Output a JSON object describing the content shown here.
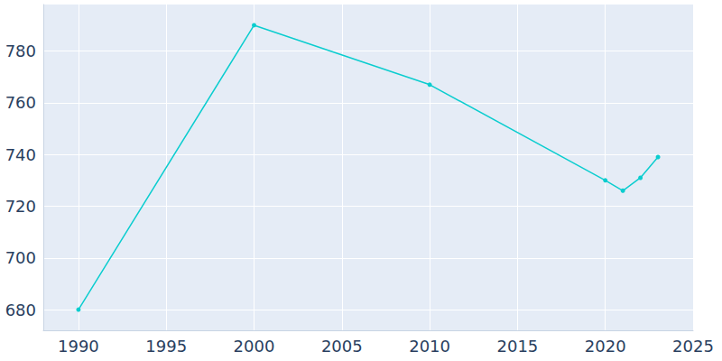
{
  "chart_data": {
    "type": "line",
    "x": [
      1990,
      2000,
      2010,
      2020,
      2021,
      2022,
      2023
    ],
    "values": [
      680,
      790,
      767,
      730,
      726,
      731,
      739
    ],
    "color": "#0bcdcf",
    "marker": "circle",
    "xlim": [
      1988,
      2025
    ],
    "xticks": [
      1990,
      1995,
      2000,
      2005,
      2010,
      2015,
      2020,
      2025
    ],
    "ylim": [
      672,
      798
    ],
    "yticks": [
      680,
      700,
      720,
      740,
      760,
      780
    ],
    "grid": true
  }
}
